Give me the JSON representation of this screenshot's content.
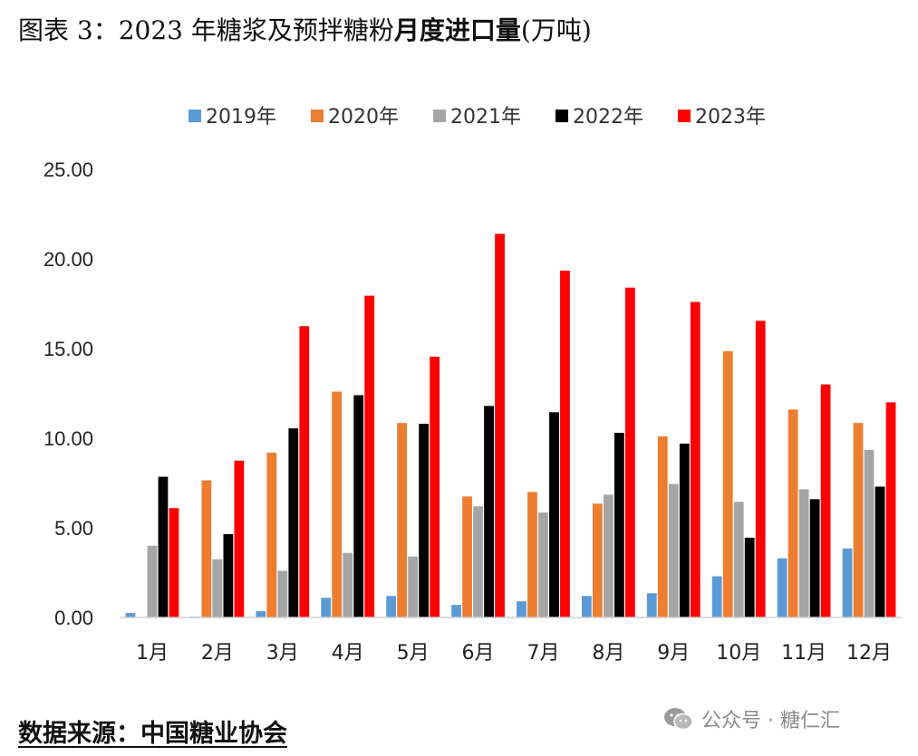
{
  "title_prefix": "图表 3：2023 年糖浆及预拌糖粉",
  "title_bold": "月度进口量",
  "title_suffix": "(万吨)",
  "source": "数据来源：中国糖业协会",
  "watermark": "公众号 · 糖仁汇",
  "chart_data": {
    "type": "bar",
    "title": "2023 年糖浆及预拌糖粉月度进口量(万吨)",
    "xlabel": "",
    "ylabel": "",
    "ylim": [
      0,
      25
    ],
    "yticks": [
      "0.00",
      "5.00",
      "10.00",
      "15.00",
      "20.00",
      "25.00"
    ],
    "legend_position": "top",
    "categories": [
      "1月",
      "2月",
      "3月",
      "4月",
      "5月",
      "6月",
      "7月",
      "8月",
      "9月",
      "10月",
      "11月",
      "12月"
    ],
    "series": [
      {
        "name": "2019年",
        "color": "#5b9bd5",
        "values": [
          0.25,
          0.05,
          0.35,
          1.1,
          1.2,
          0.7,
          0.9,
          1.2,
          1.35,
          2.3,
          3.3,
          3.85
        ]
      },
      {
        "name": "2020年",
        "color": "#ed7d31",
        "values": [
          0.0,
          7.65,
          9.2,
          12.6,
          10.85,
          6.75,
          7.0,
          6.35,
          10.1,
          14.85,
          11.6,
          10.85
        ]
      },
      {
        "name": "2021年",
        "color": "#a5a5a5",
        "values": [
          4.0,
          3.25,
          2.6,
          3.6,
          3.4,
          6.2,
          5.85,
          6.85,
          7.45,
          6.45,
          7.15,
          9.35
        ]
      },
      {
        "name": "2022年",
        "color": "#000000",
        "values": [
          7.85,
          4.65,
          10.55,
          12.4,
          10.8,
          11.8,
          11.45,
          10.3,
          9.7,
          4.45,
          6.6,
          7.3
        ]
      },
      {
        "name": "2023年",
        "color": "#ff0000",
        "values": [
          6.1,
          8.75,
          16.25,
          17.95,
          14.55,
          21.4,
          19.35,
          18.4,
          17.6,
          16.55,
          13.0,
          12.0
        ]
      }
    ]
  }
}
